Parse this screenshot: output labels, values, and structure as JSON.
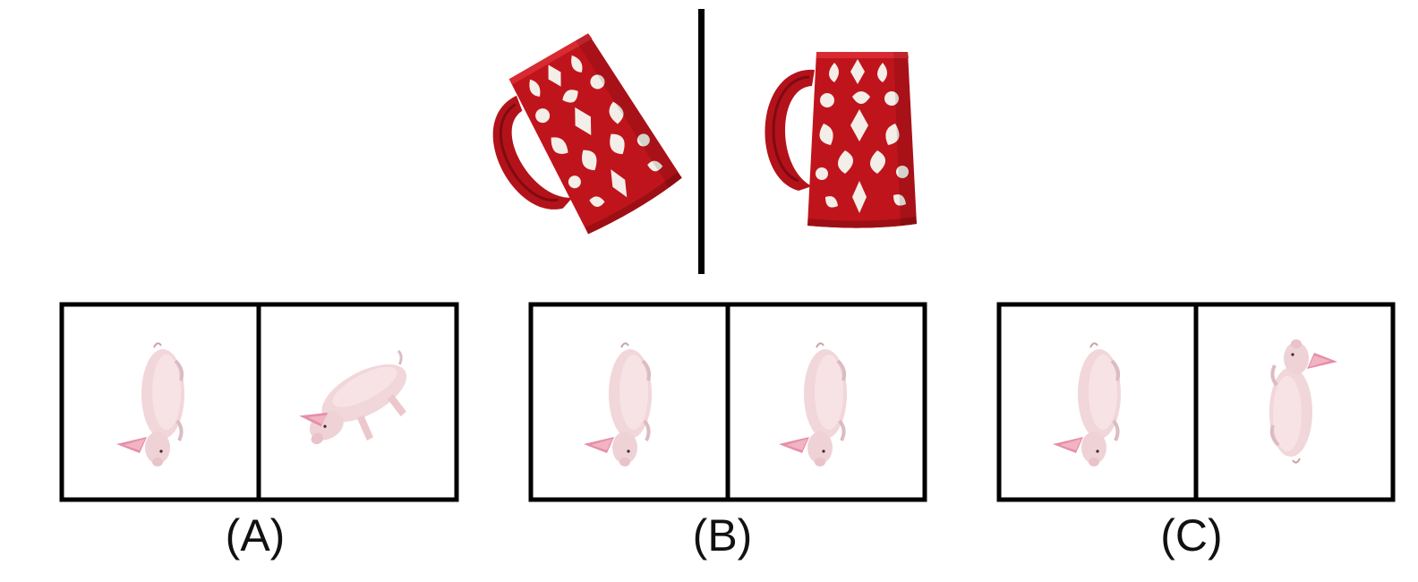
{
  "colors": {
    "mug_red": "#c0141c",
    "mug_pattern": "#f3efe8",
    "pig_pink": "#f1d6da",
    "ear_pink": "#e48fa6",
    "frame": "#000000",
    "background": "#ffffff"
  },
  "reference": {
    "object": "mug",
    "views": [
      {
        "name": "reference-view-left",
        "rotation_deg": -30
      },
      {
        "name": "reference-view-right",
        "rotation_deg": 0
      }
    ]
  },
  "options": [
    {
      "label": "(A)",
      "object": "pig",
      "views": [
        {
          "pose": "top-down",
          "rotation_deg": 0
        },
        {
          "pose": "side",
          "rotation_deg": -28
        }
      ]
    },
    {
      "label": "(B)",
      "object": "pig",
      "views": [
        {
          "pose": "top-down",
          "rotation_deg": 0
        },
        {
          "pose": "top-down",
          "rotation_deg": 0
        }
      ]
    },
    {
      "label": "(C)",
      "object": "pig",
      "views": [
        {
          "pose": "top-down",
          "rotation_deg": 0
        },
        {
          "pose": "top-down",
          "rotation_deg": 180
        }
      ]
    }
  ]
}
